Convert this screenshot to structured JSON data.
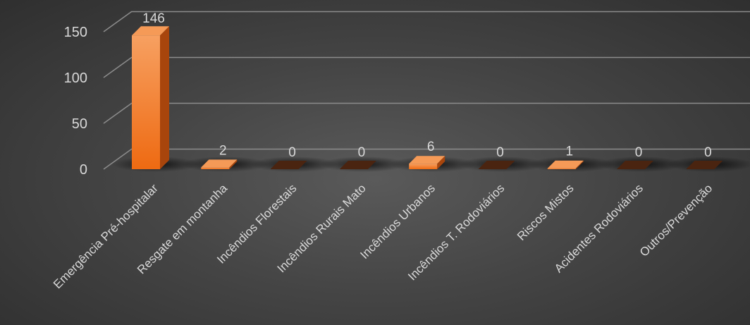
{
  "chart_data": {
    "type": "bar",
    "title": "",
    "xlabel": "",
    "ylabel": "",
    "categories": [
      "Emergência Pré-hospitalar",
      "Resgate em montanha",
      "Incêndios Florestais",
      "Incêndios Rurais Mato",
      "Incêndios Urbanos",
      "Incêndios T. Rodoviários",
      "Riscos Mistos",
      "Acidentes Rodoviários",
      "Outros/Prevenção"
    ],
    "values": [
      146,
      2,
      0,
      0,
      6,
      0,
      1,
      0,
      0
    ],
    "ylim": [
      0,
      150
    ],
    "yticks": [
      "0",
      "50",
      "100",
      "150"
    ],
    "grid": true,
    "legend": "none",
    "style": "3d",
    "colors": {
      "bar_top": "#f7a061",
      "bar_bottom": "#ee6a12",
      "bar_side": "#a8450c",
      "bar_top_face": "#f59a57",
      "gridline": "#8c8c8c",
      "text": "#d9d9d9",
      "background": "#454545"
    }
  }
}
